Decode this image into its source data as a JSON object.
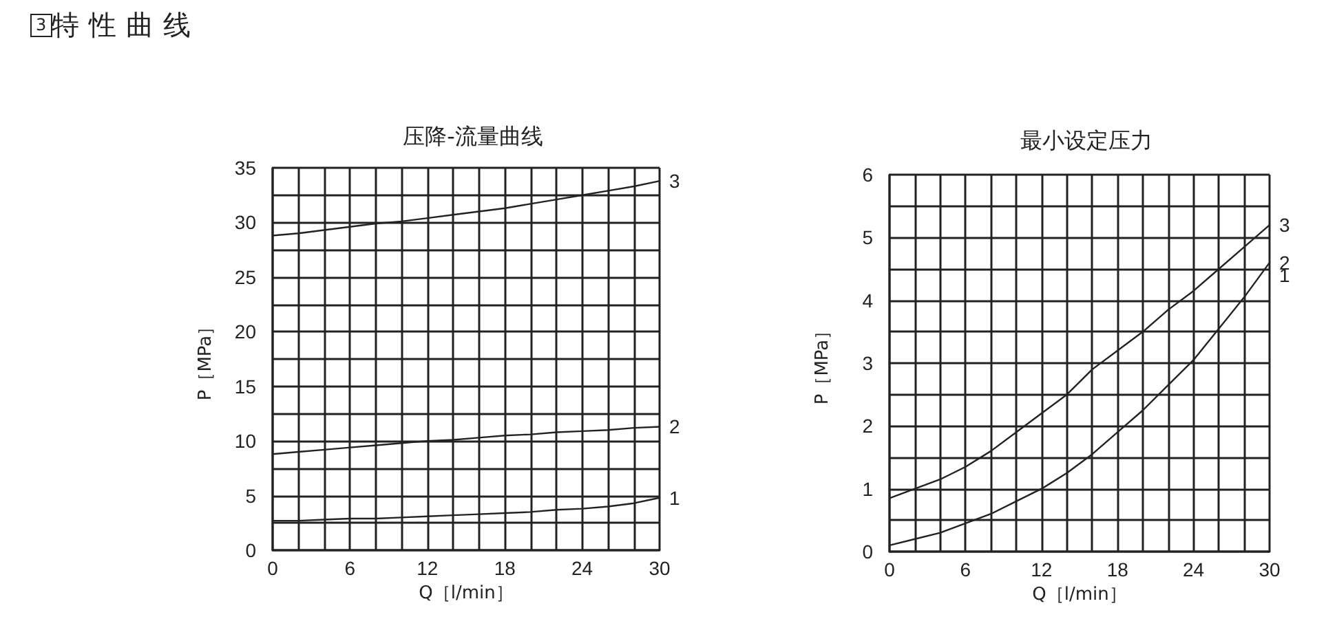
{
  "chart_data": [
    {
      "type": "line",
      "title": "压降-流量曲线",
      "xlabel": "Q［l/min］",
      "ylabel": "P［MPa］",
      "annotations": [
        "3特性曲线"
      ],
      "x": [
        0,
        2,
        4,
        6,
        8,
        10,
        12,
        14,
        16,
        18,
        20,
        22,
        24,
        26,
        28,
        30
      ],
      "series": [
        {
          "name": "1",
          "color": "#222222",
          "values": [
            2.7,
            2.7,
            2.8,
            2.9,
            2.9,
            3.0,
            3.1,
            3.2,
            3.3,
            3.4,
            3.5,
            3.7,
            3.8,
            4.0,
            4.3,
            4.8
          ]
        },
        {
          "name": "2",
          "color": "#222222",
          "values": [
            8.8,
            9.0,
            9.2,
            9.4,
            9.6,
            9.8,
            10.0,
            10.1,
            10.3,
            10.5,
            10.6,
            10.8,
            10.9,
            11.0,
            11.2,
            11.3
          ]
        },
        {
          "name": "3",
          "color": "#222222",
          "values": [
            28.8,
            29.0,
            29.3,
            29.6,
            29.9,
            30.1,
            30.4,
            30.7,
            31.0,
            31.3,
            31.7,
            32.1,
            32.5,
            32.9,
            33.3,
            33.8
          ]
        }
      ],
      "xlim": [
        0,
        30
      ],
      "xticks": [
        0,
        6,
        12,
        18,
        24,
        30
      ],
      "ylim": [
        0,
        35
      ],
      "yticks": [
        0,
        5,
        10,
        15,
        20,
        25,
        30,
        35
      ],
      "grid": true
    },
    {
      "type": "line",
      "title": "最小设定压力",
      "xlabel": "Q［l/min］",
      "ylabel": "P［MPa］",
      "annotations": [
        {
          "text": "1",
          "x": 30,
          "y": 4.6
        }
      ],
      "x": [
        0,
        2,
        4,
        6,
        8,
        10,
        12,
        14,
        16,
        18,
        20,
        22,
        24,
        26,
        28,
        30
      ],
      "series": [
        {
          "name": "2",
          "color": "#222222",
          "values": [
            0.1,
            0.2,
            0.3,
            0.45,
            0.6,
            0.8,
            1.0,
            1.25,
            1.55,
            1.9,
            2.25,
            2.65,
            3.05,
            3.55,
            4.05,
            4.6
          ]
        },
        {
          "name": "3",
          "color": "#222222",
          "values": [
            0.85,
            1.0,
            1.15,
            1.35,
            1.6,
            1.9,
            2.2,
            2.5,
            2.9,
            3.2,
            3.5,
            3.85,
            4.15,
            4.5,
            4.85,
            5.2
          ]
        }
      ],
      "xlim": [
        0,
        30
      ],
      "xticks": [
        0,
        6,
        12,
        18,
        24,
        30
      ],
      "ylim": [
        0,
        6
      ],
      "yticks": [
        0,
        1,
        2,
        3,
        4,
        5,
        6
      ],
      "grid": true
    }
  ]
}
